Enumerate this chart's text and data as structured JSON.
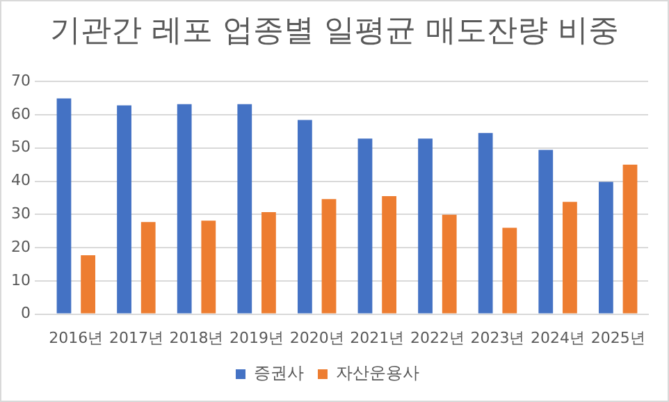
{
  "chart_data": {
    "type": "bar",
    "title": "기관간 레포 업종별 일평균 매도잔량 비중",
    "categories": [
      "2016년",
      "2017년",
      "2018년",
      "2019년",
      "2020년",
      "2021년",
      "2022년",
      "2023년",
      "2024년",
      "2025년"
    ],
    "series": [
      {
        "name": "증권사",
        "color": "#4472c4",
        "values": [
          64.9,
          62.8,
          63.2,
          63.2,
          58.4,
          52.8,
          52.8,
          54.5,
          49.4,
          39.8
        ]
      },
      {
        "name": "자산운용사",
        "color": "#ed7d31",
        "values": [
          17.7,
          27.7,
          28.1,
          30.7,
          34.6,
          35.5,
          29.9,
          26.0,
          33.8,
          45.0
        ]
      }
    ],
    "ylim": [
      0,
      70
    ],
    "yticks": [
      0,
      10,
      20,
      30,
      40,
      50,
      60,
      70
    ],
    "grid": "y",
    "legend": "bottom"
  }
}
